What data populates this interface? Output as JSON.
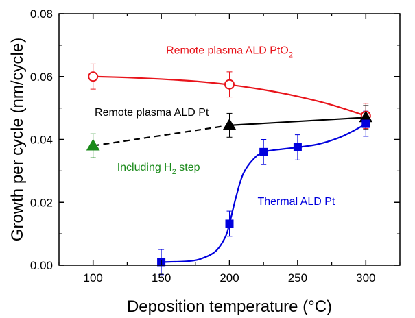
{
  "chart_data": {
    "type": "scatter",
    "xlabel": "Deposition temperature (°C)",
    "ylabel": "Growth per cycle (nm/cycle)",
    "xlim": [
      75,
      325
    ],
    "ylim": [
      0,
      0.08
    ],
    "xticks": [
      100,
      150,
      200,
      250,
      300
    ],
    "yticks": [
      0.0,
      0.02,
      0.04,
      0.06,
      0.08
    ],
    "xtick_labels": [
      "100",
      "150",
      "200",
      "250",
      "300"
    ],
    "ytick_labels": [
      "0.00",
      "0.02",
      "0.04",
      "0.06",
      "0.08"
    ],
    "grid": false,
    "legend": "none",
    "series": [
      {
        "color": "#e8141b",
        "marker": "open-circle",
        "line": "solid-smooth",
        "x": [
          100,
          200,
          300
        ],
        "y": [
          0.06,
          0.0575,
          0.0475
        ],
        "err": [
          0.004,
          0.004,
          0.004
        ],
        "curve": [
          [
            100,
            0.06
          ],
          [
            125,
            0.0597
          ],
          [
            150,
            0.0592
          ],
          [
            175,
            0.0585
          ],
          [
            200,
            0.0574
          ],
          [
            225,
            0.0558
          ],
          [
            250,
            0.0537
          ],
          [
            275,
            0.051
          ],
          [
            300,
            0.0475
          ]
        ]
      },
      {
        "color": "#000000",
        "marker": "filled-triangle",
        "line": "solid",
        "x": [
          200,
          300
        ],
        "y": [
          0.0445,
          0.047
        ],
        "err": [
          0.0038,
          0.0038
        ]
      },
      {
        "color": "#1a8a1a",
        "marker": "filled-triangle",
        "line": "none",
        "x": [
          100
        ],
        "y": [
          0.038
        ],
        "err": [
          0.0038
        ]
      },
      {
        "color": "#0000dd",
        "marker": "filled-square",
        "line": "solid-smooth",
        "x": [
          150,
          200,
          225,
          250,
          300
        ],
        "y": [
          0.001,
          0.0132,
          0.036,
          0.0375,
          0.045
        ],
        "err": [
          0.004,
          0.004,
          0.004,
          0.004,
          0.004
        ],
        "curve": [
          [
            150,
            0.001
          ],
          [
            170,
            0.0013
          ],
          [
            180,
            0.0022
          ],
          [
            190,
            0.0045
          ],
          [
            197,
            0.009
          ],
          [
            200,
            0.0132
          ],
          [
            205,
            0.022
          ],
          [
            210,
            0.029
          ],
          [
            217,
            0.0335
          ],
          [
            225,
            0.036
          ],
          [
            240,
            0.037
          ],
          [
            250,
            0.0375
          ],
          [
            265,
            0.0385
          ],
          [
            280,
            0.0405
          ],
          [
            292,
            0.043
          ],
          [
            300,
            0.045
          ]
        ]
      }
    ],
    "dashed_connector": {
      "color": "#000000",
      "x": [
        100,
        200
      ],
      "y": [
        0.038,
        0.0445
      ]
    },
    "annotations": [
      {
        "id": "remote-plasma-pto2",
        "text": "Remote plasma ALD PtO",
        "sub": "2",
        "color": "#e8141b",
        "x": 200,
        "y": 0.0672
      },
      {
        "id": "remote-plasma-pt",
        "text": "Remote plasma ALD Pt",
        "sub": "",
        "color": "#000000",
        "x": 143,
        "y": 0.0475
      },
      {
        "id": "including-h2",
        "text": "Including H",
        "sub": "2",
        "after": " step",
        "color": "#1a8a1a",
        "x": 148,
        "y": 0.0301
      },
      {
        "id": "thermal-pt",
        "text": "Thermal ALD Pt",
        "sub": "",
        "color": "#0000dd",
        "x": 249,
        "y": 0.0192
      }
    ]
  }
}
